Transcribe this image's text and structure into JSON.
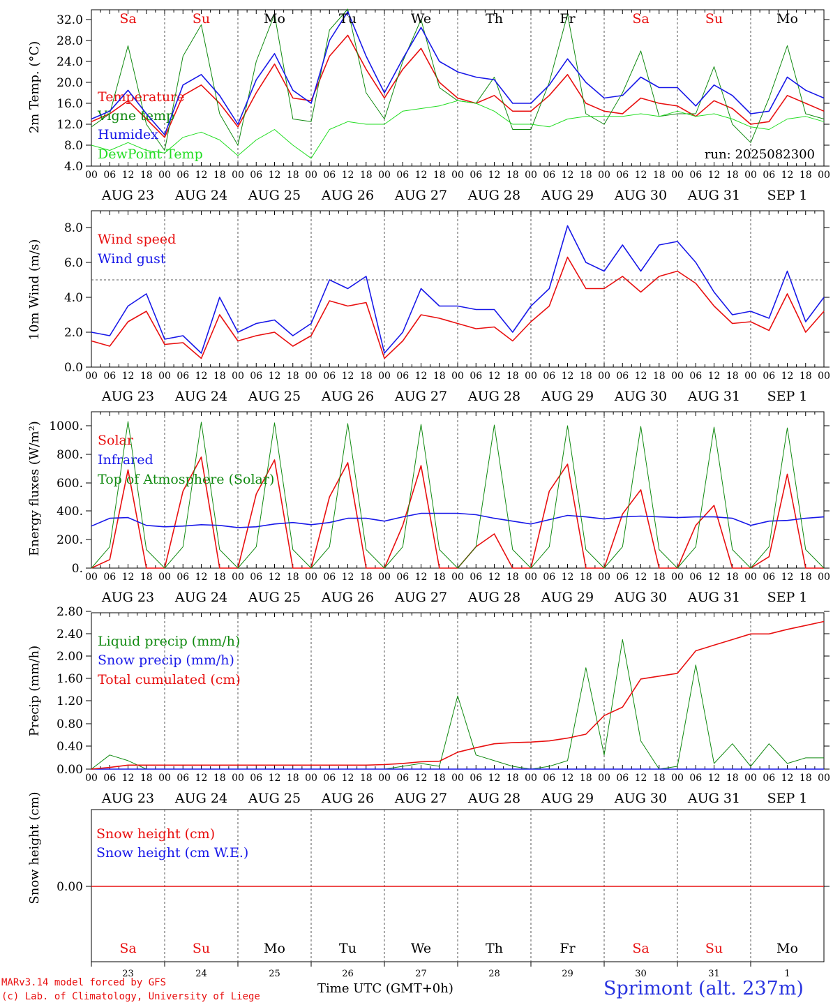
{
  "footer": {
    "model_line": "MARv3.14 model forced by GFS",
    "lab_line": "(c) Lab. of Climatology, University of Liege",
    "time_label": "Time UTC (GMT+0h)",
    "station": "Sprimont (alt. 237m)"
  },
  "colors": {
    "red": "#e81010",
    "blue": "#1818e8",
    "green": "#118a11",
    "lightgreen": "#22dd22",
    "grid": "#555555"
  },
  "axis": {
    "hour_ticks": [
      "00",
      "06",
      "12",
      "18"
    ],
    "end_tick": "00",
    "dates": [
      "AUG 23",
      "AUG 24",
      "AUG 25",
      "AUG 26",
      "AUG 27",
      "AUG 28",
      "AUG 29",
      "AUG 30",
      "AUG 31",
      "SEP  1"
    ],
    "weekdays": [
      "Sa",
      "Su",
      "Mo",
      "Tu",
      "We",
      "Th",
      "Fr",
      "Sa",
      "Su",
      "Mo"
    ],
    "weekday_colors": [
      "red",
      "red",
      "black",
      "black",
      "black",
      "black",
      "black",
      "red",
      "red",
      "black"
    ],
    "day_numbers": [
      "23",
      "24",
      "25",
      "26",
      "27",
      "28",
      "29",
      "30",
      "31",
      "1"
    ]
  },
  "chart_data": [
    {
      "type": "line",
      "ylabel": "2m Temp. (°C)",
      "ylim": [
        4.0,
        34.0
      ],
      "yticks": [
        "4.0",
        "8.0",
        "12.0",
        "16.0",
        "20.0",
        "24.0",
        "28.0",
        "32.0"
      ],
      "run_label": "run: 2025082300",
      "x": "hours since Aug 23 00 UTC (values every 6 h, 0..240)",
      "series": [
        {
          "name": "Temperature",
          "color": "red",
          "values": [
            12.5,
            14.0,
            16.5,
            13.0,
            9.5,
            17.5,
            19.5,
            16.0,
            11.5,
            18.0,
            23.5,
            17.0,
            16.5,
            25.0,
            29.0,
            22.5,
            17.0,
            22.5,
            26.5,
            20.0,
            17.0,
            16.0,
            17.5,
            14.5,
            14.5,
            17.5,
            21.5,
            16.0,
            14.5,
            14.0,
            17.0,
            16.0,
            15.5,
            13.5,
            16.5,
            15.0,
            12.0,
            12.5,
            17.5,
            16.0,
            14.5
          ]
        },
        {
          "name": "Vigne temp",
          "color": "green",
          "values": [
            11.5,
            14.0,
            27.0,
            12.0,
            7.0,
            25.0,
            31.0,
            14.0,
            8.0,
            24.0,
            33.0,
            13.0,
            12.5,
            30.0,
            34.0,
            18.0,
            13.0,
            24.0,
            32.0,
            19.0,
            16.5,
            16.0,
            21.0,
            11.0,
            11.0,
            20.0,
            33.0,
            14.0,
            12.0,
            18.0,
            26.0,
            13.5,
            14.0,
            14.0,
            23.0,
            12.0,
            8.5,
            17.0,
            27.0,
            14.0,
            13.0
          ]
        },
        {
          "name": "Humidex",
          "color": "blue",
          "values": [
            13.0,
            14.5,
            18.5,
            14.0,
            10.0,
            19.5,
            21.5,
            17.5,
            12.0,
            20.5,
            25.5,
            18.5,
            16.0,
            28.0,
            33.5,
            25.0,
            18.0,
            24.5,
            30.5,
            24.0,
            22.0,
            21.0,
            20.5,
            16.0,
            16.0,
            19.5,
            24.5,
            20.0,
            17.0,
            17.5,
            21.0,
            19.0,
            19.0,
            15.5,
            19.5,
            17.5,
            14.0,
            14.5,
            21.0,
            18.5,
            17.0
          ]
        },
        {
          "name": "DewPoint Temp",
          "color": "lightgreen",
          "values": [
            8.0,
            7.0,
            8.5,
            7.0,
            6.5,
            9.5,
            10.5,
            9.0,
            6.0,
            9.0,
            11.0,
            8.0,
            5.5,
            11.0,
            12.5,
            12.0,
            12.0,
            14.5,
            15.0,
            15.5,
            16.5,
            16.0,
            14.5,
            12.0,
            12.0,
            11.5,
            13.0,
            13.5,
            13.5,
            13.5,
            14.0,
            13.5,
            14.5,
            13.5,
            14.0,
            13.0,
            11.5,
            11.0,
            13.0,
            13.5,
            12.5
          ]
        }
      ]
    },
    {
      "type": "line",
      "ylabel": "10m Wind (m/s)",
      "ylim": [
        0.0,
        9.0
      ],
      "yticks": [
        "0.0",
        "2.0",
        "4.0",
        "6.0",
        "8.0"
      ],
      "ref_line": 5.0,
      "series": [
        {
          "name": "Wind speed",
          "color": "red",
          "values": [
            1.5,
            1.2,
            2.6,
            3.2,
            1.3,
            1.4,
            0.5,
            3.0,
            1.5,
            1.8,
            2.0,
            1.2,
            1.8,
            3.8,
            3.5,
            3.7,
            0.5,
            1.5,
            3.0,
            2.8,
            2.5,
            2.2,
            2.3,
            1.5,
            2.6,
            3.5,
            6.3,
            4.5,
            4.5,
            5.2,
            4.3,
            5.2,
            5.5,
            4.8,
            3.5,
            2.5,
            2.6,
            2.1,
            4.2,
            2.0,
            3.2
          ]
        },
        {
          "name": "Wind gust",
          "color": "blue",
          "values": [
            2.0,
            1.8,
            3.5,
            4.2,
            1.6,
            1.8,
            0.8,
            4.0,
            2.0,
            2.5,
            2.7,
            1.8,
            2.5,
            5.0,
            4.5,
            5.2,
            0.8,
            2.0,
            4.5,
            3.5,
            3.5,
            3.3,
            3.3,
            2.0,
            3.5,
            4.5,
            8.1,
            6.0,
            5.5,
            7.0,
            5.5,
            7.0,
            7.2,
            6.0,
            4.3,
            3.0,
            3.2,
            2.8,
            5.5,
            2.6,
            4.0
          ]
        }
      ]
    },
    {
      "type": "line",
      "ylabel": "Energy fluxes (W/m²)",
      "ylim": [
        0,
        1100
      ],
      "yticks": [
        "0.",
        "200.",
        "400.",
        "600.",
        "800.",
        "1000."
      ],
      "series": [
        {
          "name": "Solar",
          "color": "red",
          "values": [
            0,
            60,
            690,
            0,
            0,
            540,
            780,
            0,
            0,
            520,
            760,
            0,
            0,
            500,
            740,
            0,
            0,
            300,
            720,
            0,
            0,
            150,
            240,
            0,
            0,
            540,
            730,
            0,
            0,
            380,
            550,
            0,
            0,
            300,
            440,
            0,
            0,
            80,
            660,
            0,
            0
          ]
        },
        {
          "name": "Infrared",
          "color": "blue",
          "values": [
            295,
            350,
            355,
            300,
            290,
            295,
            305,
            300,
            285,
            290,
            310,
            320,
            305,
            320,
            350,
            350,
            330,
            360,
            385,
            385,
            385,
            375,
            350,
            330,
            310,
            340,
            370,
            360,
            345,
            360,
            365,
            360,
            355,
            360,
            360,
            350,
            300,
            330,
            335,
            350,
            360
          ]
        },
        {
          "name": "Top of Atmosphere (Solar)",
          "color": "green",
          "values": [
            0,
            150,
            1030,
            130,
            0,
            150,
            1025,
            130,
            0,
            150,
            1020,
            130,
            0,
            150,
            1015,
            130,
            0,
            150,
            1010,
            130,
            0,
            150,
            1005,
            130,
            0,
            150,
            1000,
            130,
            0,
            150,
            995,
            130,
            0,
            150,
            990,
            130,
            0,
            150,
            985,
            130,
            0
          ]
        }
      ]
    },
    {
      "type": "line",
      "ylabel": "Precip (mm/h)",
      "ylim": [
        0.0,
        2.8
      ],
      "yticks": [
        "0.00",
        "0.40",
        "0.80",
        "1.20",
        "1.60",
        "2.00",
        "2.40",
        "2.80"
      ],
      "series": [
        {
          "name": "Liquid precip (mm/h)",
          "color": "green",
          "values": [
            0,
            0.25,
            0.15,
            0,
            0,
            0,
            0,
            0,
            0,
            0,
            0,
            0,
            0,
            0,
            0,
            0,
            0,
            0.05,
            0.1,
            0.05,
            1.3,
            0.25,
            0.15,
            0.05,
            0,
            0.05,
            0.15,
            1.8,
            0.25,
            2.3,
            0.5,
            0,
            0.05,
            1.85,
            0.1,
            0.45,
            0.05,
            0.45,
            0.1,
            0.2,
            0.2
          ]
        },
        {
          "name": "Snow precip (mm/h)",
          "color": "blue",
          "values": [
            0,
            0,
            0,
            0,
            0,
            0,
            0,
            0,
            0,
            0,
            0,
            0,
            0,
            0,
            0,
            0,
            0,
            0,
            0,
            0,
            0,
            0,
            0,
            0,
            0,
            0,
            0,
            0,
            0,
            0,
            0,
            0,
            0,
            0,
            0,
            0,
            0,
            0,
            0,
            0,
            0
          ]
        },
        {
          "name": "Total cumulated (cm)",
          "color": "red",
          "values": [
            0,
            0.03,
            0.07,
            0.07,
            0.07,
            0.07,
            0.07,
            0.07,
            0.07,
            0.07,
            0.07,
            0.07,
            0.07,
            0.07,
            0.07,
            0.07,
            0.08,
            0.1,
            0.13,
            0.14,
            0.3,
            0.38,
            0.45,
            0.47,
            0.48,
            0.5,
            0.55,
            0.62,
            0.95,
            1.1,
            1.6,
            1.65,
            1.7,
            2.1,
            2.2,
            2.3,
            2.4,
            2.4,
            2.48,
            2.55,
            2.62
          ]
        }
      ]
    },
    {
      "type": "line",
      "ylabel": "Snow height (cm)",
      "yticks": [
        "0.00"
      ],
      "series": [
        {
          "name": "Snow height (cm)",
          "color": "red",
          "values": [
            0,
            0
          ]
        },
        {
          "name": "Snow height (cm W.E.)",
          "color": "blue",
          "values": [
            0,
            0
          ]
        }
      ]
    }
  ]
}
